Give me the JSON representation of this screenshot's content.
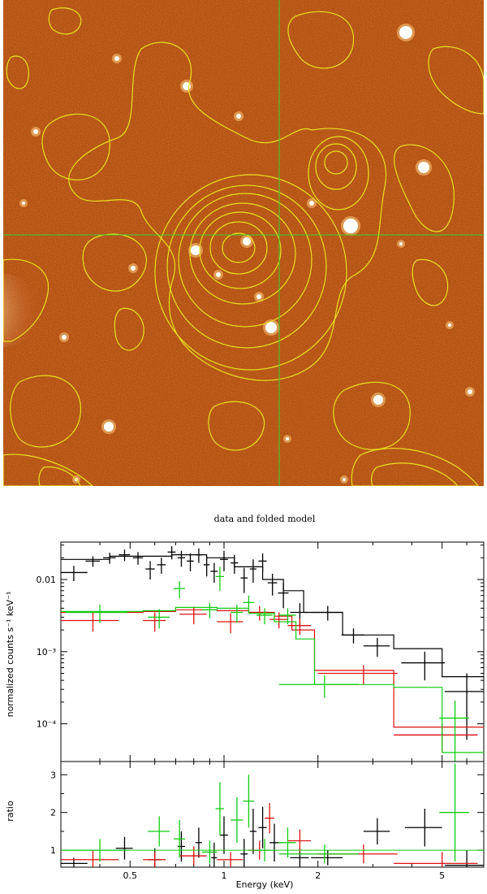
{
  "image_panel": {
    "background_color": "#b54a12",
    "contour_color": "#e8e020",
    "crosshair_color": "#33d633"
  },
  "chart_data": {
    "type": "scatter",
    "title": "data and folded model",
    "xlabel": "Energy (keV)",
    "xscale": "log",
    "xlim": [
      0.3,
      6.8
    ],
    "x_ticks": [
      {
        "value": 0.5,
        "label": "0.5"
      },
      {
        "value": 1,
        "label": "1"
      },
      {
        "value": 2,
        "label": "2"
      },
      {
        "value": 5,
        "label": "5"
      }
    ],
    "top_panel": {
      "ylabel": "normalized counts s⁻¹ keV⁻¹",
      "yscale": "log",
      "ylim": [
        3e-05,
        0.033
      ],
      "y_ticks": [
        {
          "value": 0.0001,
          "label": "10⁻⁴"
        },
        {
          "value": 0.001,
          "label": "10⁻³"
        },
        {
          "value": 0.01,
          "label": "0.01"
        }
      ]
    },
    "bottom_panel": {
      "ylabel": "ratio",
      "yscale": "linear",
      "ylim": [
        0.55,
        3.35
      ],
      "y_ticks": [
        {
          "value": 1,
          "label": "1"
        },
        {
          "value": 2,
          "label": "2"
        },
        {
          "value": 3,
          "label": "3"
        }
      ]
    },
    "series": [
      {
        "color": "#000000",
        "points": [
          {
            "x": 0.33,
            "xerr": 0.035,
            "y": 0.0125,
            "yerr": 0.003
          },
          {
            "x": 0.38,
            "xerr": 0.02,
            "y": 0.018,
            "yerr": 0.003
          },
          {
            "x": 0.43,
            "xerr": 0.02,
            "y": 0.02,
            "yerr": 0.0035
          },
          {
            "x": 0.48,
            "xerr": 0.02,
            "y": 0.022,
            "yerr": 0.004
          },
          {
            "x": 0.53,
            "xerr": 0.02,
            "y": 0.02,
            "yerr": 0.004
          },
          {
            "x": 0.58,
            "xerr": 0.02,
            "y": 0.014,
            "yerr": 0.004
          },
          {
            "x": 0.63,
            "xerr": 0.02,
            "y": 0.016,
            "yerr": 0.004
          },
          {
            "x": 0.68,
            "xerr": 0.02,
            "y": 0.024,
            "yerr": 0.005
          },
          {
            "x": 0.73,
            "xerr": 0.02,
            "y": 0.02,
            "yerr": 0.005
          },
          {
            "x": 0.78,
            "xerr": 0.02,
            "y": 0.018,
            "yerr": 0.005
          },
          {
            "x": 0.83,
            "xerr": 0.02,
            "y": 0.022,
            "yerr": 0.005
          },
          {
            "x": 0.88,
            "xerr": 0.02,
            "y": 0.016,
            "yerr": 0.005
          },
          {
            "x": 0.93,
            "xerr": 0.025,
            "y": 0.013,
            "yerr": 0.004
          },
          {
            "x": 1.0,
            "xerr": 0.03,
            "y": 0.019,
            "yerr": 0.006
          },
          {
            "x": 1.08,
            "xerr": 0.03,
            "y": 0.017,
            "yerr": 0.005
          },
          {
            "x": 1.16,
            "xerr": 0.03,
            "y": 0.0105,
            "yerr": 0.004
          },
          {
            "x": 1.24,
            "xerr": 0.03,
            "y": 0.014,
            "yerr": 0.005
          },
          {
            "x": 1.33,
            "xerr": 0.04,
            "y": 0.018,
            "yerr": 0.005
          },
          {
            "x": 1.43,
            "xerr": 0.05,
            "y": 0.009,
            "yerr": 0.003
          },
          {
            "x": 1.55,
            "xerr": 0.06,
            "y": 0.0065,
            "yerr": 0.0025
          },
          {
            "x": 1.75,
            "xerr": 0.12,
            "y": 0.0035,
            "yerr": 0.0012
          },
          {
            "x": 2.15,
            "xerr": 0.25,
            "y": 0.0035,
            "yerr": 0.0008
          },
          {
            "x": 2.6,
            "xerr": 0.22,
            "y": 0.0017,
            "yerr": 0.0004
          },
          {
            "x": 3.1,
            "xerr": 0.3,
            "y": 0.0012,
            "yerr": 0.00035
          },
          {
            "x": 4.4,
            "xerr": 0.7,
            "y": 0.0007,
            "yerr": 0.0003
          },
          {
            "x": 6.0,
            "xerr": 0.9,
            "y": 0.00028,
            "yerr": 0.00022
          }
        ],
        "model_steps": [
          {
            "x0": 0.3,
            "x1": 0.43,
            "y": 0.019
          },
          {
            "x0": 0.43,
            "x1": 0.68,
            "y": 0.021
          },
          {
            "x0": 0.68,
            "x1": 0.88,
            "y": 0.022
          },
          {
            "x0": 0.88,
            "x1": 1.08,
            "y": 0.02
          },
          {
            "x0": 1.08,
            "x1": 1.33,
            "y": 0.015
          },
          {
            "x0": 1.33,
            "x1": 1.55,
            "y": 0.01
          },
          {
            "x0": 1.55,
            "x1": 1.8,
            "y": 0.007
          },
          {
            "x0": 1.8,
            "x1": 2.4,
            "y": 0.0035
          },
          {
            "x0": 2.4,
            "x1": 3.5,
            "y": 0.0017
          },
          {
            "x0": 3.5,
            "x1": 5.0,
            "y": 0.0011
          },
          {
            "x0": 5.0,
            "x1": 6.8,
            "y": 0.00045
          }
        ],
        "ratio_points": [
          {
            "x": 0.33,
            "xerr": 0.035,
            "y": 0.65,
            "yerr": 0.15
          },
          {
            "x": 0.48,
            "xerr": 0.03,
            "y": 1.05,
            "yerr": 0.3
          },
          {
            "x": 0.6,
            "xerr": 0.03,
            "y": 0.75,
            "yerr": 0.3
          },
          {
            "x": 0.73,
            "xerr": 0.02,
            "y": 1.1,
            "yerr": 0.4
          },
          {
            "x": 0.83,
            "xerr": 0.02,
            "y": 1.2,
            "yerr": 0.4
          },
          {
            "x": 0.93,
            "xerr": 0.02,
            "y": 0.8,
            "yerr": 0.4
          },
          {
            "x": 1.0,
            "xerr": 0.03,
            "y": 1.4,
            "yerr": 0.5
          },
          {
            "x": 1.16,
            "xerr": 0.03,
            "y": 0.9,
            "yerr": 0.4
          },
          {
            "x": 1.24,
            "xerr": 0.03,
            "y": 1.5,
            "yerr": 0.6
          },
          {
            "x": 1.33,
            "xerr": 0.04,
            "y": 1.6,
            "yerr": 0.55
          },
          {
            "x": 1.45,
            "xerr": 0.05,
            "y": 1.2,
            "yerr": 0.5
          },
          {
            "x": 1.75,
            "xerr": 0.12,
            "y": 0.8,
            "yerr": 0.25
          },
          {
            "x": 2.15,
            "xerr": 0.25,
            "y": 0.8,
            "yerr": 0.2
          },
          {
            "x": 3.1,
            "xerr": 0.3,
            "y": 1.5,
            "yerr": 0.35
          },
          {
            "x": 4.4,
            "xerr": 0.6,
            "y": 1.6,
            "yerr": 0.5
          },
          {
            "x": 6.0,
            "xerr": 0.9,
            "y": 0.6,
            "yerr": 0.4
          }
        ]
      },
      {
        "color": "#dd1111",
        "points": [
          {
            "x": 0.38,
            "xerr": 0.08,
            "y": 0.0027,
            "yerr": 0.0008
          },
          {
            "x": 0.6,
            "xerr": 0.05,
            "y": 0.0027,
            "yerr": 0.0008
          },
          {
            "x": 0.8,
            "xerr": 0.08,
            "y": 0.0033,
            "yerr": 0.0009
          },
          {
            "x": 1.05,
            "xerr": 0.1,
            "y": 0.0026,
            "yerr": 0.0008
          },
          {
            "x": 1.3,
            "xerr": 0.1,
            "y": 0.0035,
            "yerr": 0.0008
          },
          {
            "x": 1.5,
            "xerr": 0.1,
            "y": 0.0028,
            "yerr": 0.0007
          },
          {
            "x": 1.75,
            "xerr": 0.15,
            "y": 0.0023,
            "yerr": 0.0006
          },
          {
            "x": 2.8,
            "xerr": 0.8,
            "y": 0.0005,
            "yerr": 0.00015
          },
          {
            "x": 5.0,
            "xerr": 1.5,
            "y": 7e-05,
            "yerr": 3e-05
          }
        ],
        "model_steps": [
          {
            "x0": 0.3,
            "x1": 0.55,
            "y": 0.0035
          },
          {
            "x0": 0.55,
            "x1": 0.7,
            "y": 0.0036
          },
          {
            "x0": 0.7,
            "x1": 0.95,
            "y": 0.0038
          },
          {
            "x0": 0.95,
            "x1": 1.2,
            "y": 0.0037
          },
          {
            "x0": 1.2,
            "x1": 1.45,
            "y": 0.0035
          },
          {
            "x0": 1.45,
            "x1": 1.65,
            "y": 0.0031
          },
          {
            "x0": 1.65,
            "x1": 1.95,
            "y": 0.002
          },
          {
            "x0": 1.95,
            "x1": 3.5,
            "y": 0.00055
          },
          {
            "x0": 3.5,
            "x1": 6.8,
            "y": 9e-05
          }
        ],
        "ratio_points": [
          {
            "x": 0.38,
            "xerr": 0.08,
            "y": 0.75,
            "yerr": 0.25
          },
          {
            "x": 0.6,
            "xerr": 0.05,
            "y": 0.75,
            "yerr": 0.2
          },
          {
            "x": 0.8,
            "xerr": 0.08,
            "y": 0.85,
            "yerr": 0.25
          },
          {
            "x": 1.05,
            "xerr": 0.1,
            "y": 0.75,
            "yerr": 0.2
          },
          {
            "x": 1.3,
            "xerr": 0.1,
            "y": 1.0,
            "yerr": 0.25
          },
          {
            "x": 1.4,
            "xerr": 0.05,
            "y": 1.85,
            "yerr": 0.4
          },
          {
            "x": 1.75,
            "xerr": 0.15,
            "y": 1.25,
            "yerr": 0.3
          },
          {
            "x": 2.8,
            "xerr": 0.8,
            "y": 0.9,
            "yerr": 0.25
          },
          {
            "x": 5.0,
            "xerr": 1.5,
            "y": 0.65,
            "yerr": 0.3
          }
        ]
      },
      {
        "color": "#11cc11",
        "points": [
          {
            "x": 0.4,
            "xerr": 0.09,
            "y": 0.0035,
            "yerr": 0.001
          },
          {
            "x": 0.62,
            "xerr": 0.05,
            "y": 0.003,
            "yerr": 0.0009
          },
          {
            "x": 0.72,
            "xerr": 0.03,
            "y": 0.0075,
            "yerr": 0.002
          },
          {
            "x": 0.9,
            "xerr": 0.05,
            "y": 0.0038,
            "yerr": 0.0009
          },
          {
            "x": 0.97,
            "xerr": 0.03,
            "y": 0.011,
            "yerr": 0.004
          },
          {
            "x": 1.1,
            "xerr": 0.05,
            "y": 0.0035,
            "yerr": 0.001
          },
          {
            "x": 1.2,
            "xerr": 0.05,
            "y": 0.0048,
            "yerr": 0.0012
          },
          {
            "x": 1.35,
            "xerr": 0.08,
            "y": 0.0032,
            "yerr": 0.0008
          },
          {
            "x": 1.6,
            "xerr": 0.1,
            "y": 0.0032,
            "yerr": 0.0008
          },
          {
            "x": 2.1,
            "xerr": 0.6,
            "y": 0.00035,
            "yerr": 0.00012
          },
          {
            "x": 5.5,
            "xerr": 0.6,
            "y": 0.00012,
            "yerr": 9e-05
          }
        ],
        "model_steps": [
          {
            "x0": 0.3,
            "x1": 0.55,
            "y": 0.0036
          },
          {
            "x0": 0.55,
            "x1": 0.7,
            "y": 0.0037
          },
          {
            "x0": 0.7,
            "x1": 0.95,
            "y": 0.0041
          },
          {
            "x0": 0.95,
            "x1": 1.2,
            "y": 0.004
          },
          {
            "x0": 1.2,
            "x1": 1.45,
            "y": 0.0034
          },
          {
            "x0": 1.45,
            "x1": 1.7,
            "y": 0.0026
          },
          {
            "x0": 1.7,
            "x1": 1.95,
            "y": 0.0015
          },
          {
            "x0": 1.95,
            "x1": 3.5,
            "y": 0.00035
          },
          {
            "x0": 3.5,
            "x1": 5.0,
            "y": 0.00032
          },
          {
            "x0": 5.0,
            "x1": 6.8,
            "y": 4e-05
          }
        ],
        "ratio_points": [
          {
            "x": 0.4,
            "xerr": 0.09,
            "y": 1.0,
            "yerr": 0.3
          },
          {
            "x": 0.62,
            "xerr": 0.05,
            "y": 1.5,
            "yerr": 0.4
          },
          {
            "x": 0.72,
            "xerr": 0.03,
            "y": 1.3,
            "yerr": 0.5
          },
          {
            "x": 0.9,
            "xerr": 0.05,
            "y": 0.95,
            "yerr": 0.3
          },
          {
            "x": 0.97,
            "xerr": 0.03,
            "y": 2.1,
            "yerr": 0.7
          },
          {
            "x": 1.1,
            "xerr": 0.05,
            "y": 1.8,
            "yerr": 0.6
          },
          {
            "x": 1.2,
            "xerr": 0.05,
            "y": 2.3,
            "yerr": 0.7
          },
          {
            "x": 1.35,
            "xerr": 0.08,
            "y": 1.0,
            "yerr": 0.3
          },
          {
            "x": 1.6,
            "xerr": 0.1,
            "y": 1.2,
            "yerr": 0.4
          },
          {
            "x": 2.1,
            "xerr": 0.6,
            "y": 0.9,
            "yerr": 0.25
          },
          {
            "x": 5.5,
            "xerr": 0.6,
            "y": 2.0,
            "yerr": 1.3
          }
        ]
      }
    ]
  }
}
